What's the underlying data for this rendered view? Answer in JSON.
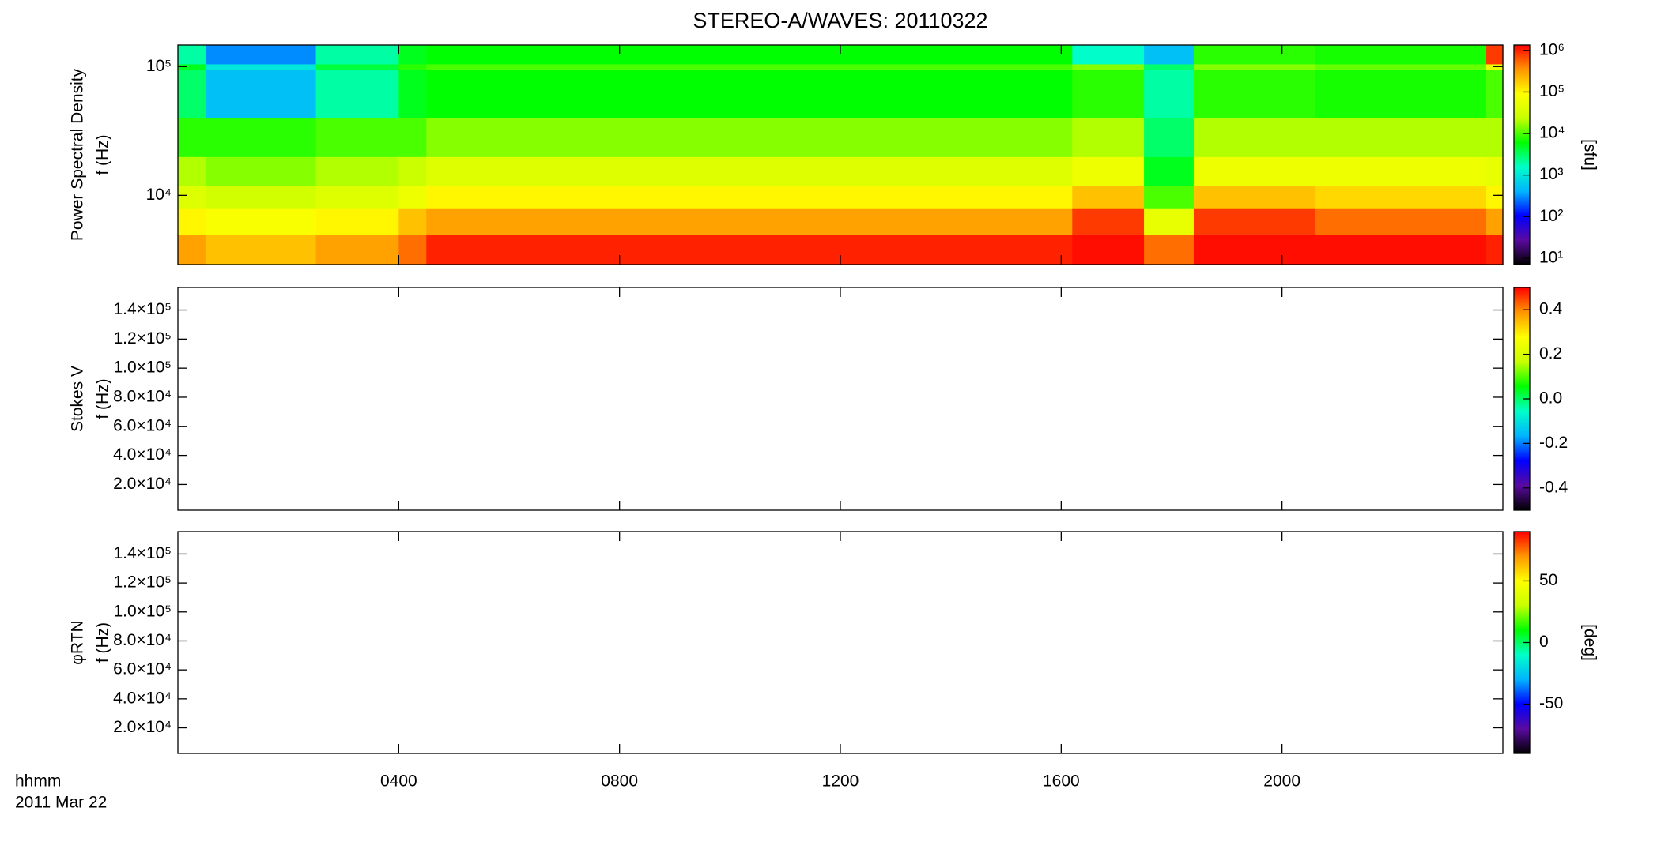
{
  "chart_data": [
    {
      "type": "heatmap",
      "title": "STEREO-A/WAVES: 20110322",
      "ylabel": [
        "Power Spectral Density",
        "f (Hz)"
      ],
      "xlim": [
        0,
        24
      ],
      "ylim": [
        2900,
        147000
      ],
      "ylog": true,
      "yticks": [
        {
          "value": 10000,
          "label": "10⁴"
        },
        {
          "value": 100000,
          "label": "10⁵"
        }
      ],
      "x_edges": [
        0,
        0.5,
        2.5,
        4.0,
        4.5,
        16.2,
        17.5,
        18.4,
        20.6,
        23.7,
        24
      ],
      "y_edges": [
        2900,
        5000,
        8000,
        12000,
        20000,
        40000,
        95000,
        105000,
        147000
      ],
      "values": [
        [
          300000,
          100000,
          40000,
          20000,
          8000,
          3000,
          5000,
          2000
        ],
        [
          200000,
          80000,
          30000,
          15000,
          8000,
          500,
          1000,
          300
        ],
        [
          300000,
          100000,
          40000,
          20000,
          10000,
          2000,
          4000,
          2000
        ],
        [
          500000,
          200000,
          60000,
          25000,
          10000,
          5000,
          8000,
          5000
        ],
        [
          1000000,
          300000,
          100000,
          40000,
          15000,
          6000,
          10000,
          6000
        ],
        [
          1200000,
          800000,
          200000,
          60000,
          20000,
          8000,
          15000,
          1500
        ],
        [
          500000,
          50000,
          10000,
          5000,
          3000,
          2000,
          3000,
          500
        ],
        [
          1200000,
          800000,
          200000,
          60000,
          20000,
          8000,
          15000,
          8000
        ],
        [
          1200000,
          500000,
          150000,
          60000,
          20000,
          7000,
          12000,
          7000
        ],
        [
          1000000,
          300000,
          100000,
          50000,
          20000,
          10000,
          50000,
          800000
        ]
      ],
      "colormap": [
        "#000000",
        "#5a0aa0",
        "#0000ff",
        "#00b4ff",
        "#00ffc8",
        "#00ff00",
        "#c8ff00",
        "#ffff00",
        "#ff9600",
        "#ff0000"
      ],
      "clog": true,
      "clim": [
        7,
        1350000
      ],
      "cticks": [
        {
          "value": 10,
          "label": "10¹"
        },
        {
          "value": 100,
          "label": "10²"
        },
        {
          "value": 1000,
          "label": "10³"
        },
        {
          "value": 10000,
          "label": "10⁴"
        },
        {
          "value": 100000,
          "label": "10⁵"
        },
        {
          "value": 1000000,
          "label": "10⁶"
        }
      ],
      "clabel": "[sfu]"
    },
    {
      "type": "heatmap",
      "ylabel": [
        "Stokes V",
        "f (Hz)"
      ],
      "xlim": [
        0,
        24
      ],
      "ylim": [
        2300,
        155500
      ],
      "yticks": [
        {
          "value": 20000,
          "label": "2.0×10⁴"
        },
        {
          "value": 40000,
          "label": "4.0×10⁴"
        },
        {
          "value": 60000,
          "label": "6.0×10⁴"
        },
        {
          "value": 80000,
          "label": "8.0×10⁴"
        },
        {
          "value": 100000,
          "label": "1.0×10⁵"
        },
        {
          "value": 120000,
          "label": "1.2×10⁵"
        },
        {
          "value": 140000,
          "label": "1.4×10⁵"
        }
      ],
      "colormap": [
        "#000000",
        "#5a0aa0",
        "#0000ff",
        "#00b4ff",
        "#00ffc8",
        "#00ff00",
        "#c8ff00",
        "#ffff00",
        "#ff9600",
        "#ff0000"
      ],
      "clim": [
        -0.5,
        0.5
      ],
      "cticks": [
        {
          "value": -0.4,
          "label": "-0.4"
        },
        {
          "value": -0.2,
          "label": "-0.2"
        },
        {
          "value": 0,
          "label": "0.0"
        },
        {
          "value": 0.2,
          "label": "0.2"
        },
        {
          "value": 0.4,
          "label": "0.4"
        }
      ]
    },
    {
      "type": "heatmap",
      "ylabel": [
        "φRTN",
        "f (Hz)"
      ],
      "xlim": [
        0,
        24
      ],
      "ylim": [
        2300,
        155500
      ],
      "yticks": [
        {
          "value": 20000,
          "label": "2.0×10⁴"
        },
        {
          "value": 40000,
          "label": "4.0×10⁴"
        },
        {
          "value": 60000,
          "label": "6.0×10⁴"
        },
        {
          "value": 80000,
          "label": "8.0×10⁴"
        },
        {
          "value": 100000,
          "label": "1.0×10⁵"
        },
        {
          "value": 120000,
          "label": "1.2×10⁵"
        },
        {
          "value": 140000,
          "label": "1.4×10⁵"
        }
      ],
      "xticks": [
        {
          "value": 4,
          "label": "0400"
        },
        {
          "value": 8,
          "label": "0800"
        },
        {
          "value": 12,
          "label": "1200"
        },
        {
          "value": 16,
          "label": "1600"
        },
        {
          "value": 20,
          "label": "2000"
        }
      ],
      "xlabel": [
        "hhmm",
        "2011 Mar 22"
      ],
      "colormap": [
        "#000000",
        "#5a0aa0",
        "#0000ff",
        "#00b4ff",
        "#00ffc8",
        "#00ff00",
        "#c8ff00",
        "#ffff00",
        "#ff9600",
        "#ff0000"
      ],
      "clim": [
        -90,
        90
      ],
      "cticks": [
        -50,
        0,
        50
      ],
      "clabel": "[deg]"
    }
  ]
}
